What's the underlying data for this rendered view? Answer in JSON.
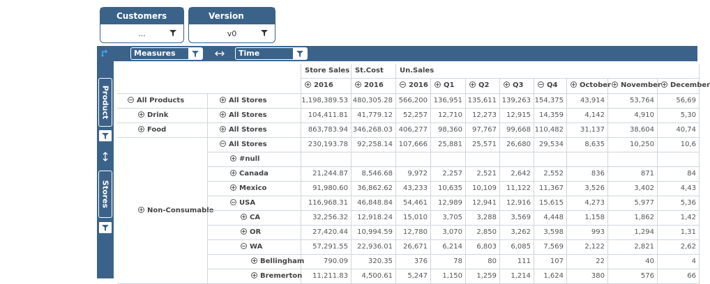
{
  "filters": [
    {
      "label": "Customers",
      "value": "..."
    },
    {
      "label": "Version",
      "value": "v0"
    }
  ],
  "toolbar": {
    "columns_field": "Measures",
    "rows_field": "Time"
  },
  "sidebar": {
    "rows_field": "Product",
    "second_field": "Stores"
  },
  "table": {
    "column_headers": [
      {
        "measure": "Store Sales",
        "periods": [
          {
            "label": "2016",
            "expanded": false
          }
        ]
      },
      {
        "measure": "St.Cost",
        "periods": [
          {
            "label": "2016",
            "expanded": false
          }
        ]
      },
      {
        "measure": "Un.Sales",
        "periods": [
          {
            "label": "2016",
            "expanded": true
          },
          {
            "label": "Q1",
            "expanded": false
          },
          {
            "label": "Q2",
            "expanded": false
          },
          {
            "label": "Q3",
            "expanded": false
          },
          {
            "label": "Q4",
            "expanded": true
          },
          {
            "label": "October",
            "expanded": false
          },
          {
            "label": "November",
            "expanded": false
          },
          {
            "label": "December",
            "expanded": false
          }
        ]
      }
    ],
    "products": [
      {
        "name": "All Products",
        "expanded": true,
        "level": 0,
        "rows": [
          {
            "store": "All Stores",
            "expanded": false,
            "level": 0,
            "cells": [
              "1,198,389.53",
              "480,305.28",
              "566,200",
              "136,951",
              "135,611",
              "139,263",
              "154,375",
              "43,914",
              "53,764",
              "56,69"
            ]
          }
        ]
      },
      {
        "name": "Drink",
        "expanded": false,
        "level": 1,
        "rows": [
          {
            "store": "All Stores",
            "expanded": false,
            "level": 0,
            "cells": [
              "104,411.81",
              "41,779.12",
              "52,257",
              "12,710",
              "12,273",
              "12,915",
              "14,359",
              "4,142",
              "4,910",
              "5,30"
            ]
          }
        ]
      },
      {
        "name": "Food",
        "expanded": false,
        "level": 1,
        "rows": [
          {
            "store": "All Stores",
            "expanded": false,
            "level": 0,
            "cells": [
              "863,783.94",
              "346,268.03",
              "406,277",
              "98,360",
              "97,767",
              "99,668",
              "110,482",
              "31,137",
              "38,604",
              "40,74"
            ]
          }
        ]
      },
      {
        "name": "Non-Consumable",
        "expanded": false,
        "level": 1,
        "rows": [
          {
            "store": "All Stores",
            "expanded": true,
            "level": 0,
            "cells": [
              "230,193.78",
              "92,258.14",
              "107,666",
              "25,881",
              "25,571",
              "26,680",
              "29,534",
              "8,635",
              "10,250",
              "10,6"
            ]
          },
          {
            "store": "#null",
            "expanded": false,
            "level": 1,
            "cells": []
          },
          {
            "store": "Canada",
            "expanded": false,
            "level": 1,
            "cells": [
              "21,244.87",
              "8,546.68",
              "9,972",
              "2,257",
              "2,521",
              "2,642",
              "2,552",
              "836",
              "871",
              "84"
            ]
          },
          {
            "store": "Mexico",
            "expanded": false,
            "level": 1,
            "cells": [
              "91,980.60",
              "36,862.62",
              "43,233",
              "10,635",
              "10,109",
              "11,122",
              "11,367",
              "3,526",
              "3,402",
              "4,43"
            ]
          },
          {
            "store": "USA",
            "expanded": true,
            "level": 1,
            "cells": [
              "116,968.31",
              "46,848.84",
              "54,461",
              "12,989",
              "12,941",
              "12,916",
              "15,615",
              "4,273",
              "5,977",
              "5,36"
            ]
          },
          {
            "store": "CA",
            "expanded": false,
            "level": 2,
            "cells": [
              "32,256.32",
              "12,918.24",
              "15,010",
              "3,705",
              "3,288",
              "3,569",
              "4,448",
              "1,158",
              "1,862",
              "1,42"
            ]
          },
          {
            "store": "OR",
            "expanded": false,
            "level": 2,
            "cells": [
              "27,420.44",
              "10,994.59",
              "12,780",
              "3,070",
              "2,850",
              "3,262",
              "3,598",
              "993",
              "1,294",
              "1,31"
            ]
          },
          {
            "store": "WA",
            "expanded": true,
            "level": 2,
            "cells": [
              "57,291.55",
              "22,936.01",
              "26,671",
              "6,214",
              "6,803",
              "6,085",
              "7,569",
              "2,122",
              "2,821",
              "2,62"
            ]
          },
          {
            "store": "Bellingham",
            "expanded": false,
            "level": 3,
            "cells": [
              "790.09",
              "320.35",
              "376",
              "78",
              "80",
              "111",
              "107",
              "22",
              "40",
              "4"
            ]
          },
          {
            "store": "Bremerton",
            "expanded": false,
            "level": 3,
            "cells": [
              "11,211.83",
              "4,500.61",
              "5,247",
              "1,150",
              "1,259",
              "1,214",
              "1,624",
              "380",
              "576",
              "66"
            ]
          }
        ]
      }
    ]
  }
}
